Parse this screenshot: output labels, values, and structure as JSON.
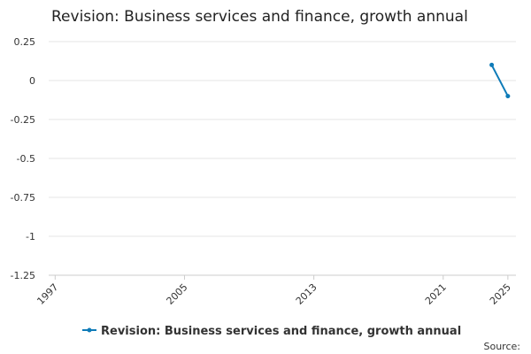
{
  "chart_data": {
    "type": "line",
    "title": "Revision: Business services and finance, growth annual",
    "x": [
      2024,
      2025
    ],
    "series": [
      {
        "name": "Revision: Business services and finance, growth annual",
        "color": "#0e7bb8",
        "values": [
          0.1,
          -0.1
        ]
      }
    ],
    "xlim": [
      1996.6,
      2025.5
    ],
    "xticks": [
      1997,
      2005,
      2013,
      2021,
      2025
    ],
    "ylim": [
      -1.25,
      0.25
    ],
    "yticks": [
      0.25,
      0,
      -0.25,
      -0.5,
      -0.75,
      -1,
      -1.25
    ],
    "grid": true,
    "legend": "bottom",
    "source": "Source:"
  }
}
